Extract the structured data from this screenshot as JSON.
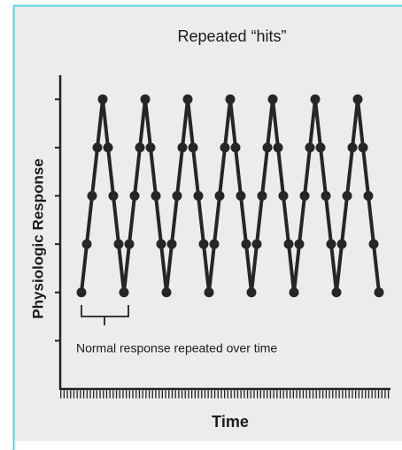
{
  "chart_data": {
    "type": "line",
    "title": "Repeated “hits”",
    "x_label": "Time",
    "y_label": "Physiologic Response",
    "annotation": "Normal response repeated over time",
    "x": [
      0,
      1,
      2,
      3,
      4,
      5,
      6,
      7,
      8,
      9,
      10,
      11,
      12,
      13,
      14,
      15,
      16,
      17,
      18,
      19,
      20,
      21,
      22,
      23,
      24,
      25,
      26,
      27,
      28,
      29,
      30,
      31,
      32,
      33,
      34,
      35,
      36,
      37,
      38,
      39,
      40,
      41,
      42,
      43,
      44,
      45,
      46,
      47,
      48,
      49,
      50,
      51,
      52,
      53,
      54,
      55,
      56
    ],
    "series": [
      {
        "name": "Physiologic Response",
        "color": "#262626",
        "values": [
          2,
          3,
          4,
          5,
          6,
          5,
          4,
          3,
          2,
          3,
          4,
          5,
          6,
          5,
          4,
          3,
          2,
          3,
          4,
          5,
          6,
          5,
          4,
          3,
          2,
          3,
          4,
          5,
          6,
          5,
          4,
          3,
          2,
          3,
          4,
          5,
          6,
          5,
          4,
          3,
          2,
          3,
          4,
          5,
          6,
          5,
          4,
          3,
          2,
          3,
          4,
          5,
          6,
          5,
          4,
          3,
          2
        ]
      }
    ],
    "xlim": [
      -4,
      58
    ],
    "ylim": [
      0,
      6.5
    ],
    "yticks": [
      1,
      2,
      3,
      4,
      5,
      6
    ]
  }
}
